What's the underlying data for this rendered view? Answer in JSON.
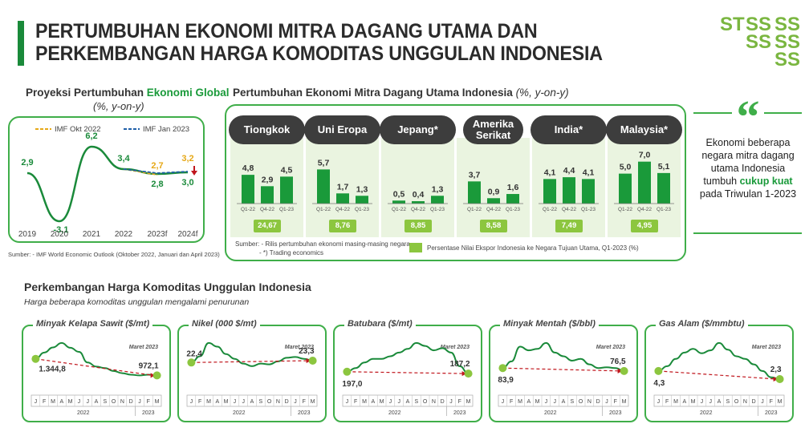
{
  "header": {
    "title_line1": "PERTUMBUHAN EKONOMI MITRA DAGANG UTAMA DAN",
    "title_line2": "PERKEMBANGAN HARGA KOMODITAS UNGGULAN INDONESIA"
  },
  "global": {
    "title_a": "Proyeksi Pertumbuhan ",
    "title_b": "Ekonomi Global",
    "subtitle": "(%, y-on-y)",
    "source": "Sumber:  - IMF World Economic Outlook (Oktober 2022, Januari dan April 2023)",
    "colors": {
      "line": "#1a8a3a",
      "imf_okt": "#e6a817",
      "imf_jan": "#1f5fa8",
      "arrow": "#c0161d"
    }
  },
  "partners": {
    "title": "Pertumbuhan Ekonomi Mitra Dagang Utama Indonesia",
    "title_unit": " (%, y-on-y)",
    "source_line1": "Sumber:  - Rilis pertumbuhan ekonomi masing-masing negara",
    "source_line2": "- *) Trading economics",
    "legend_label": "Persentase Nilai Ekspor Indonesia ke Negara Tujuan Utama, Q1-2023 (%)",
    "colors": {
      "bar": "#1a9a3a",
      "badge": "#8cc63f"
    }
  },
  "quote": {
    "mark": "“",
    "text_a": "Ekonomi beberapa negara mitra dagang utama Indonesia tumbuh ",
    "text_b": "cukup kuat",
    "text_c": " pada Triwulan 1-2023"
  },
  "commodities": {
    "title": "Perkembangan Harga Komoditas Unggulan Indonesia",
    "subtitle": "Harga beberapa komoditas unggulan mengalami penurunan",
    "colors": {
      "line": "#1a8a3a",
      "trend": "#c0161d",
      "dot": "#8cc63f"
    }
  },
  "chart_data": [
    {
      "type": "line",
      "x": [
        "2019",
        "2020",
        "2021",
        "2022",
        "2023f",
        "2024f"
      ],
      "series": [
        {
          "values": [
            2.9,
            -3.1,
            6.2,
            3.4,
            2.8,
            3.0
          ],
          "value_labels": [
            "2,9",
            "-3,1",
            "6,2",
            "3,4",
            "2,8",
            "3,0"
          ]
        },
        {
          "name": "IMF Okt 2022",
          "x": [
            "2022",
            "2023f"
          ],
          "values": [
            3.4,
            2.7
          ],
          "value_labels": [
            "",
            "2,7"
          ]
        },
        {
          "name": "IMF Jan 2023",
          "x": [
            "2022",
            "2023f",
            "2024f"
          ],
          "values": [
            3.4,
            2.9,
            3.1
          ]
        }
      ],
      "annotations": [
        {
          "x": "2024f",
          "value": 3.2,
          "label": "3,2"
        }
      ],
      "ylim": [
        -4,
        7
      ],
      "legend": "top-right"
    },
    {
      "type": "bar",
      "categories": [
        "Q1-22",
        "Q4-22",
        "Q1-23"
      ],
      "ylim": [
        0,
        8
      ],
      "groups": [
        {
          "country": "Tiongkok",
          "values": [
            4.8,
            2.9,
            4.5
          ],
          "labels": [
            "4,8",
            "2,9",
            "4,5"
          ],
          "export_share": "24,67"
        },
        {
          "country": "Uni Eropa",
          "values": [
            5.7,
            1.7,
            1.3
          ],
          "labels": [
            "5,7",
            "1,7",
            "1,3"
          ],
          "export_share": "8,76"
        },
        {
          "country": "Jepang*",
          "values": [
            0.5,
            0.4,
            1.3
          ],
          "labels": [
            "0,5",
            "0,4",
            "1,3"
          ],
          "export_share": "8,85"
        },
        {
          "country": "Amerika Serikat",
          "values": [
            3.7,
            0.9,
            1.6
          ],
          "labels": [
            "3,7",
            "0,9",
            "1,6"
          ],
          "export_share": "8,58"
        },
        {
          "country": "India*",
          "values": [
            4.1,
            4.4,
            4.1
          ],
          "labels": [
            "4,1",
            "4,4",
            "4,1"
          ],
          "export_share": "7,49"
        },
        {
          "country": "Malaysia*",
          "values": [
            5.0,
            7.0,
            5.1
          ],
          "labels": [
            "5,0",
            "7,0",
            "5,1"
          ],
          "export_share": "4,95"
        }
      ]
    },
    {
      "type": "line",
      "months": [
        "J",
        "F",
        "M",
        "A",
        "M",
        "J",
        "J",
        "A",
        "S",
        "O",
        "N",
        "D",
        "J",
        "F",
        "M"
      ],
      "years": [
        "2022",
        "2023"
      ],
      "annotation": "Maret 2023",
      "commodities": [
        {
          "name": "Minyak Kelapa Sawit ($/mt)",
          "start_label": "1.344,8",
          "end_label": "972,1",
          "start": 1344.8,
          "end": 972.1,
          "profile": [
            0.55,
            0.72,
            0.86,
            0.98,
            0.85,
            0.74,
            0.45,
            0.34,
            0.3,
            0.22,
            0.16,
            0.12,
            0.1,
            0.12,
            0.1
          ]
        },
        {
          "name": "Nikel (000 $/mt)",
          "start_label": "22,4",
          "end_label": "23,3",
          "start": 22.4,
          "end": 23.3,
          "profile": [
            0.45,
            0.62,
            0.98,
            0.88,
            0.68,
            0.55,
            0.42,
            0.35,
            0.42,
            0.4,
            0.48,
            0.58,
            0.6,
            0.55,
            0.5
          ]
        },
        {
          "name": "Batubara ($/mt)",
          "start_label": "197,0",
          "end_label": "187,2",
          "start": 197.0,
          "end": 187.2,
          "profile": [
            0.2,
            0.3,
            0.45,
            0.55,
            0.55,
            0.62,
            0.72,
            0.82,
            0.98,
            0.9,
            0.78,
            0.84,
            0.72,
            0.35,
            0.15
          ]
        },
        {
          "name": "Minyak Mentah ($/bbl)",
          "start_label": "83,9",
          "end_label": "76,5",
          "start": 83.9,
          "end": 76.5,
          "profile": [
            0.3,
            0.48,
            0.88,
            0.78,
            0.82,
            0.98,
            0.72,
            0.62,
            0.5,
            0.55,
            0.4,
            0.3,
            0.32,
            0.3,
            0.22
          ]
        },
        {
          "name": "Gas Alam ($/mmbtu)",
          "start_label": "4,3",
          "end_label": "2,3",
          "start": 4.3,
          "end": 2.3,
          "profile": [
            0.22,
            0.35,
            0.55,
            0.72,
            0.82,
            0.7,
            0.78,
            0.98,
            0.8,
            0.62,
            0.55,
            0.4,
            0.22,
            0.05,
            0.0
          ]
        }
      ]
    }
  ]
}
